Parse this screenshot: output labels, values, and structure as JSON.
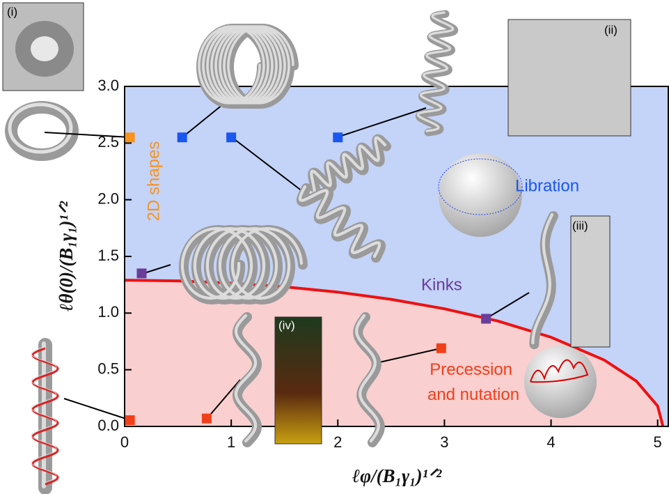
{
  "chart_data": {
    "type": "scatter",
    "xlabel": "ℓφ/(B₁γ₁)¹ᐟ²",
    "ylabel": "ℓθ(0)/(B₁γ₁)¹ᐟ²",
    "xlim": [
      0,
      5.1
    ],
    "ylim": [
      0,
      3.0
    ],
    "xticks": [
      0,
      1,
      2,
      3,
      4,
      5
    ],
    "yticks": [
      {
        "value": 0,
        "label": "0.0"
      },
      0.5,
      {
        "value": 1,
        "label": "1.0"
      },
      1.5,
      {
        "value": 2,
        "label": "2.0"
      },
      2.5,
      {
        "value": 3,
        "label": "3.0"
      }
    ],
    "region_colors": {
      "above": "#c4d3f8",
      "below": "#f9cfd0"
    },
    "boundary": {
      "color": "#ee1111",
      "x": [
        0,
        0.5,
        1,
        1.5,
        2,
        2.5,
        3,
        3.5,
        4,
        4.5,
        4.8,
        5,
        5.05
      ],
      "y": [
        1.29,
        1.284,
        1.264,
        1.232,
        1.185,
        1.121,
        1.038,
        0.93,
        0.787,
        0.585,
        0.4,
        0.18,
        0
      ]
    },
    "series": [
      {
        "name": "2D shapes",
        "color": "#f7931e",
        "x": [
          0.05
        ],
        "values": [
          2.55
        ]
      },
      {
        "name": "Libration",
        "color": "#1a56f0",
        "x": [
          0.54,
          1.0,
          2.0
        ],
        "values": [
          2.55,
          2.55,
          2.55
        ]
      },
      {
        "name": "Kinks",
        "color": "#6a3d9a",
        "x": [
          0.16,
          3.39
        ],
        "values": [
          1.35,
          0.95
        ]
      },
      {
        "name": "Precession and nutation",
        "color": "#f0401a",
        "x": [
          0.05,
          0.77,
          2.97
        ],
        "values": [
          0.055,
          0.07,
          0.69
        ]
      }
    ],
    "insets": [
      "(i)",
      "(ii)",
      "(iii)",
      "(iv)"
    ]
  }
}
